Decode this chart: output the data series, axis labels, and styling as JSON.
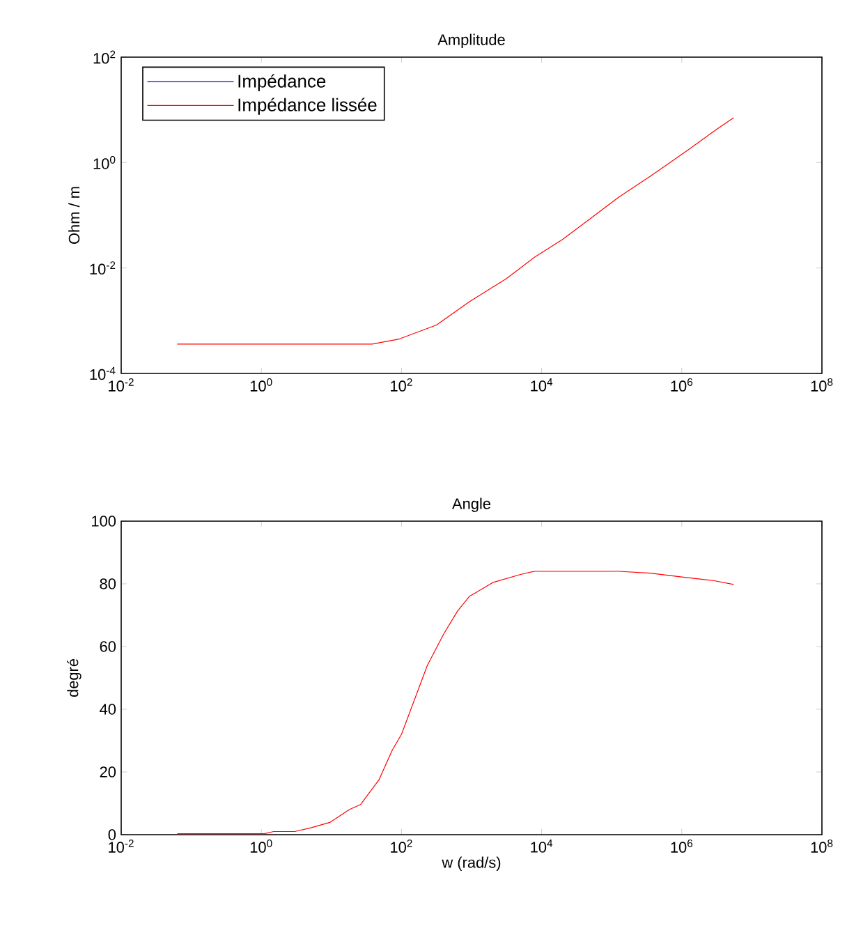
{
  "chart_data": [
    {
      "type": "line",
      "title": "Amplitude",
      "ylabel": "Ohm / m",
      "log": "xy",
      "legend": "top left",
      "xlim": [
        0.01,
        100000000
      ],
      "ylim": [
        0.0001,
        100
      ],
      "xticks": [
        {
          "value": 0.01,
          "label": "10$^{-2}$"
        },
        {
          "value": 1,
          "label": "10$^{0}$"
        },
        {
          "value": 100,
          "label": "10$^{2}$"
        },
        {
          "value": 10000,
          "label": "10$^{4}$"
        },
        {
          "value": 1000000,
          "label": "10$^{6}$"
        },
        {
          "value": 100000000,
          "label": "10$^{8}$"
        }
      ],
      "yticks": [
        {
          "value": 0.0001,
          "label": "10$^{-4}$"
        },
        {
          "value": 0.01,
          "label": "10$^{-2}$"
        },
        {
          "value": 1,
          "label": "10$^{0}$"
        },
        {
          "value": 100,
          "label": "10$^{2}$"
        }
      ],
      "x": [
        0.063,
        38,
        93,
        316,
        933,
        3160,
        7900,
        20000,
        50000,
        126000,
        355000,
        1170000,
        3400000,
        5500000
      ],
      "series": [
        {
          "name": "Impédance",
          "color": "#0000ff",
          "values": [
            null,
            null,
            null,
            null,
            null,
            null,
            null,
            null,
            null,
            null,
            null,
            null,
            null,
            null
          ]
        },
        {
          "name": "Impédance lissée",
          "color": "#ff0000",
          "values": [
            0.00036,
            0.00036,
            0.00045,
            0.00083,
            0.0023,
            0.0063,
            0.016,
            0.035,
            0.087,
            0.22,
            0.55,
            1.66,
            4.6,
            7.1
          ]
        }
      ]
    },
    {
      "type": "line",
      "title": "Angle",
      "xlabel": "w (rad/s)",
      "ylabel": "degré",
      "log": "x",
      "xlim": [
        0.01,
        100000000
      ],
      "ylim": [
        0,
        100
      ],
      "xticks": [
        {
          "value": 0.01,
          "label": "10$^{-2}$"
        },
        {
          "value": 1,
          "label": "10$^{0}$"
        },
        {
          "value": 100,
          "label": "10$^{2}$"
        },
        {
          "value": 10000,
          "label": "10$^{4}$"
        },
        {
          "value": 1000000,
          "label": "10$^{6}$"
        },
        {
          "value": 100000000,
          "label": "10$^{8}$"
        }
      ],
      "yticks": [
        0,
        20,
        40,
        60,
        80,
        100
      ],
      "x": [
        0.063,
        1.1,
        1.5,
        3.0,
        5.1,
        9.5,
        18,
        26,
        48,
        74,
        100,
        234,
        400,
        630,
        933,
        2000,
        5000,
        7900,
        126000,
        355000,
        1000000,
        2900000,
        5500000
      ],
      "series": [
        {
          "color": "#0000ff",
          "values": [
            null,
            null,
            null,
            null,
            null,
            null,
            null,
            null,
            null,
            null,
            null,
            null,
            null,
            null,
            null,
            null,
            null,
            null,
            null,
            null,
            null,
            null,
            null
          ]
        },
        {
          "color": "#ff0000",
          "values": [
            0.3,
            0.3,
            1.0,
            1.0,
            2.2,
            3.9,
            8,
            9.6,
            17.6,
            27,
            32,
            54,
            64,
            71.3,
            76,
            80.4,
            83,
            84,
            84,
            83.4,
            82.2,
            81,
            79.8
          ]
        }
      ]
    }
  ]
}
